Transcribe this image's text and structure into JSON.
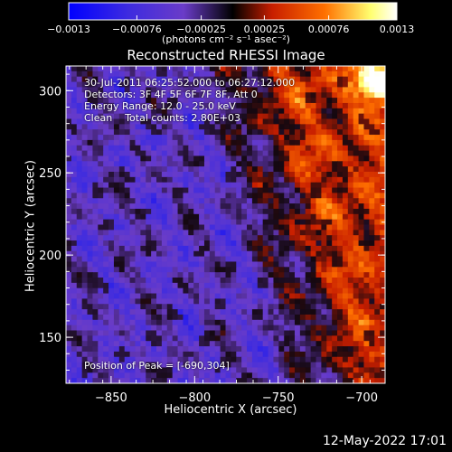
{
  "chart_data": {
    "type": "heatmap",
    "title": "Reconstructed RHESSI Image",
    "xlabel": "Heliocentric X (arcsec)",
    "ylabel": "Heliocentric Y (arcsec)",
    "xlim": [
      -877,
      -686
    ],
    "ylim": [
      122,
      315
    ],
    "x_ticks": [
      -850,
      -800,
      -750,
      -700
    ],
    "x_tick_labels": [
      "−850",
      "−800",
      "−750",
      "−700"
    ],
    "y_ticks": [
      150,
      200,
      250,
      300
    ],
    "y_tick_labels": [
      "150",
      "200",
      "250",
      "300"
    ],
    "colorbar": {
      "range": [
        -0.0013,
        0.0013
      ],
      "ticks": [
        -0.0013,
        -0.00076,
        -0.00025,
        0.00025,
        0.00076,
        0.0013
      ],
      "tick_labels": [
        "−0.0013",
        "−0.00076",
        "−0.00025",
        "0.00025",
        "0.00076",
        "0.0013"
      ],
      "unit_label": "(photons cm⁻² s⁻¹ asec⁻²)"
    },
    "annotations": [
      "30-Jul-2011 06:25:52.000 to 06:27:12.000",
      "Detectors: 3F 4F 5F 6F 7F 8F, Att 0",
      "Energy Range: 12.0 - 25.0 keV",
      "Clean    Total counts: 2.80E+03"
    ],
    "peak_label": "Position of Peak = [-690,304]",
    "peak": {
      "x": -690,
      "y": 304
    },
    "colormap": [
      "#0000ff",
      "#6a3cc8",
      "#1a0a14",
      "#c81e00",
      "#ff7000",
      "#ffff80",
      "#ffffff"
    ]
  },
  "footer_date": "12-May-2022 17:01"
}
